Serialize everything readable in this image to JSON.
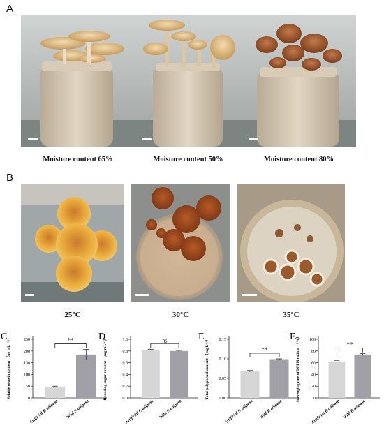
{
  "panel_a": {
    "letter": "A",
    "captions": [
      "Moisture content 65%",
      "Moisture content 50%",
      "Moisture content 80%"
    ]
  },
  "panel_b": {
    "letter": "B",
    "captions": [
      "25°C",
      "30°C",
      "35°C"
    ]
  },
  "chart_data": [
    {
      "panel": "C",
      "type": "bar",
      "categories": [
        "Artificial P. adiposa",
        "Wild P. adiposa"
      ],
      "values": [
        48,
        185
      ],
      "errors": [
        2,
        22
      ],
      "ylabel": "Soluble protein content （μg mL⁻¹）",
      "ylim": [
        0,
        250
      ],
      "yticks": [
        "0",
        "50",
        "100",
        "150",
        "200",
        "250"
      ],
      "significance": "**",
      "colors": [
        "#d6d6d6",
        "#a0a0a6"
      ]
    },
    {
      "panel": "D",
      "type": "bar",
      "categories": [
        "Artificial P. adiposa",
        "Wild P. adiposa"
      ],
      "values": [
        0.82,
        0.8
      ],
      "errors": [
        0.01,
        0.01
      ],
      "ylabel": "Reducing sugar content （mg mL⁻¹）",
      "ylim": [
        0,
        1.0
      ],
      "yticks": [
        "0.0",
        "0.2",
        "0.4",
        "0.6",
        "0.8",
        "1.0"
      ],
      "significance": "ns",
      "colors": [
        "#d6d6d6",
        "#a0a0a6"
      ]
    },
    {
      "panel": "E",
      "type": "bar",
      "categories": [
        "Artificial P. adiposa",
        "Wild P. adiposa"
      ],
      "values": [
        0.068,
        0.099
      ],
      "errors": [
        0.002,
        0.001
      ],
      "ylabel": "Total polyphenol content （mg L⁻¹）",
      "ylim": [
        0,
        0.15
      ],
      "yticks": [
        "0.00",
        "0.05",
        "0.10",
        "0.15"
      ],
      "significance": "**",
      "colors": [
        "#d6d6d6",
        "#a0a0a6"
      ]
    },
    {
      "panel": "F",
      "type": "bar",
      "categories": [
        "Artificial P. adiposa",
        "Wild P. adiposa"
      ],
      "values": [
        62,
        74
      ],
      "errors": [
        2,
        1.5
      ],
      "ylabel": "Scavenging rate of DPPH radical （%）",
      "ylim": [
        0,
        100
      ],
      "yticks": [
        "0",
        "20",
        "40",
        "60",
        "80",
        "100"
      ],
      "significance": "**",
      "colors": [
        "#d6d6d6",
        "#a0a0a6"
      ]
    }
  ]
}
